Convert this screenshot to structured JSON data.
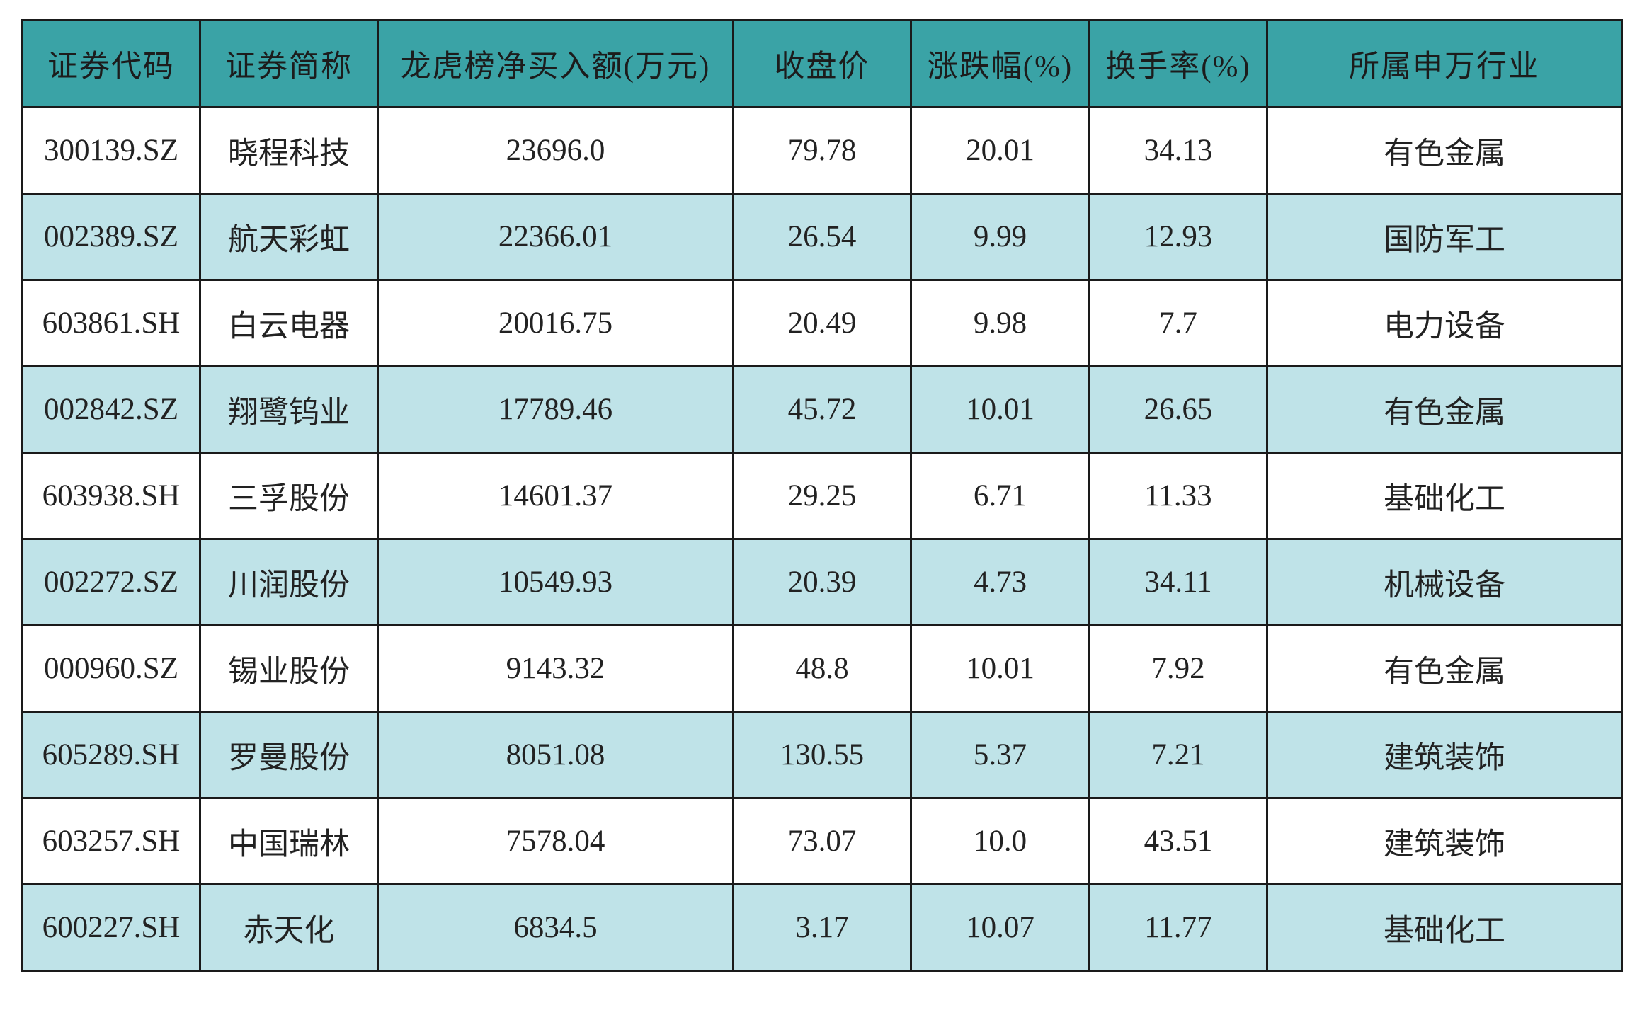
{
  "table": {
    "header": [
      "证券代码",
      "证券简称",
      "龙虎榜净买入额(万元)",
      "收盘价",
      "涨跌幅(%)",
      "换手率(%)",
      "所属申万行业"
    ],
    "rows": [
      [
        "300139.SZ",
        "晓程科技",
        "23696.0",
        "79.78",
        "20.01",
        "34.13",
        "有色金属"
      ],
      [
        "002389.SZ",
        "航天彩虹",
        "22366.01",
        "26.54",
        "9.99",
        "12.93",
        "国防军工"
      ],
      [
        "603861.SH",
        "白云电器",
        "20016.75",
        "20.49",
        "9.98",
        "7.7",
        "电力设备"
      ],
      [
        "002842.SZ",
        "翔鹭钨业",
        "17789.46",
        "45.72",
        "10.01",
        "26.65",
        "有色金属"
      ],
      [
        "603938.SH",
        "三孚股份",
        "14601.37",
        "29.25",
        "6.71",
        "11.33",
        "基础化工"
      ],
      [
        "002272.SZ",
        "川润股份",
        "10549.93",
        "20.39",
        "4.73",
        "34.11",
        "机械设备"
      ],
      [
        "000960.SZ",
        "锡业股份",
        "9143.32",
        "48.8",
        "10.01",
        "7.92",
        "有色金属"
      ],
      [
        "605289.SH",
        "罗曼股份",
        "8051.08",
        "130.55",
        "5.37",
        "7.21",
        "建筑装饰"
      ],
      [
        "603257.SH",
        "中国瑞林",
        "7578.04",
        "73.07",
        "10.0",
        "43.51",
        "建筑装饰"
      ],
      [
        "600227.SH",
        "赤天化",
        "6834.5",
        "3.17",
        "10.07",
        "11.77",
        "基础化工"
      ]
    ]
  }
}
